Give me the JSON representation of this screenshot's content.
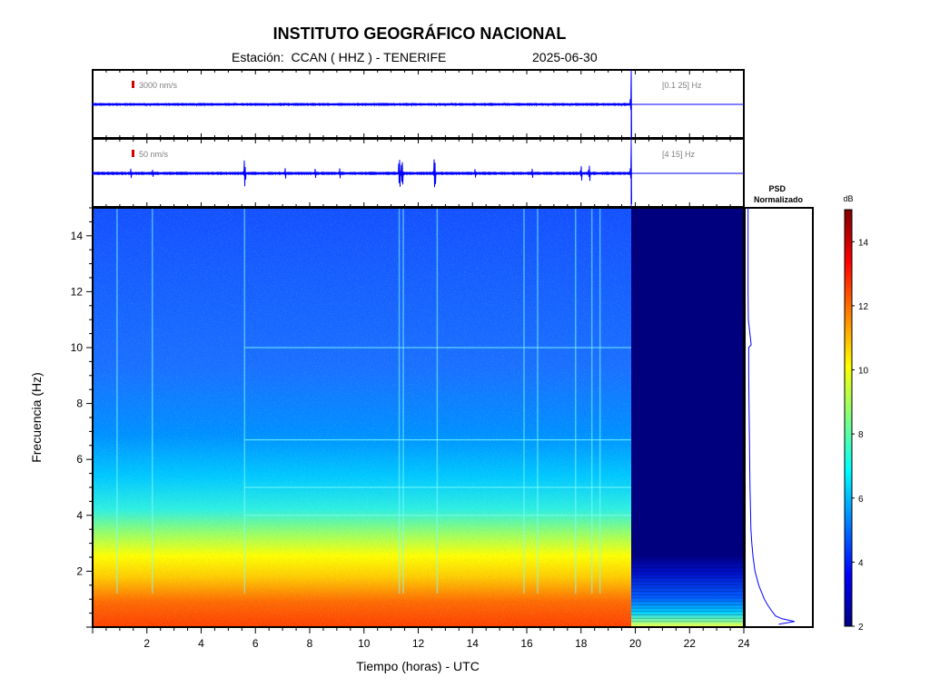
{
  "header": {
    "title": "INSTITUTO GEOGRÁFICO NACIONAL",
    "station_label": "Estación:",
    "station_value": "CCAN ( HHZ ) - TENERIFE",
    "date": "2025-06-30"
  },
  "colors": {
    "trace": "#0000ff",
    "scale_marker": "#d40000",
    "no_data": "#00007f"
  },
  "chart_data": [
    {
      "type": "line",
      "name": "seismogram-broadband",
      "amplitude_scale": "3000 nm/s",
      "filter_band": "[0.1 25] Hz",
      "x_range": [
        0,
        24
      ],
      "data_end_hour": 19.85,
      "noise_level": 0.04,
      "events": [
        {
          "hour": 19.85,
          "amplitude": 1.0
        }
      ]
    },
    {
      "type": "line",
      "name": "seismogram-filtered",
      "amplitude_scale": "50 nm/s",
      "filter_band": "[4 15] Hz",
      "x_range": [
        0,
        24
      ],
      "data_end_hour": 19.85,
      "noise_level": 0.05,
      "events": [
        {
          "hour": 1.4,
          "amplitude": 0.2
        },
        {
          "hour": 2.2,
          "amplitude": 0.18
        },
        {
          "hour": 5.6,
          "amplitude": 0.7
        },
        {
          "hour": 7.1,
          "amplitude": 0.2
        },
        {
          "hour": 8.2,
          "amplitude": 0.15
        },
        {
          "hour": 9.1,
          "amplitude": 0.2
        },
        {
          "hour": 11.3,
          "amplitude": 0.9
        },
        {
          "hour": 11.4,
          "amplitude": 0.75
        },
        {
          "hour": 12.6,
          "amplitude": 0.95
        },
        {
          "hour": 14.1,
          "amplitude": 0.2
        },
        {
          "hour": 16.2,
          "amplitude": 0.15
        },
        {
          "hour": 18.0,
          "amplitude": 0.35
        },
        {
          "hour": 18.3,
          "amplitude": 0.4
        },
        {
          "hour": 19.85,
          "amplitude": 1.0
        }
      ]
    },
    {
      "type": "heatmap",
      "name": "spectrogram",
      "xlabel": "Tiempo (horas) - UTC",
      "ylabel": "Frecuencia  (Hz)",
      "xlim": [
        0,
        24
      ],
      "ylim": [
        0,
        15
      ],
      "x_ticks": [
        2,
        4,
        6,
        8,
        10,
        12,
        14,
        16,
        18,
        20,
        22,
        24
      ],
      "y_ticks": [
        2,
        4,
        6,
        8,
        10,
        12,
        14
      ],
      "data_end_hour": 19.85,
      "vertical_lines_hours": [
        0.9,
        2.2,
        5.6,
        11.3,
        11.45,
        12.7,
        15.9,
        16.4,
        17.8,
        18.4,
        18.7
      ],
      "horizontal_lines_hz": [
        10.0,
        6.7,
        5.0,
        4.0
      ]
    },
    {
      "type": "line",
      "name": "psd-normalized",
      "title": "PSD\nNormalizado",
      "ylim": [
        0,
        15
      ],
      "freq_hz": [
        0.1,
        0.2,
        0.3,
        0.4,
        0.6,
        0.8,
        1.0,
        1.5,
        2.0,
        2.5,
        3.0,
        3.5,
        4.0,
        5.0,
        6.0,
        7.0,
        8.0,
        9.0,
        10.0,
        10.1,
        11.0,
        12.0,
        13.0,
        14.0,
        15.0
      ],
      "power": [
        0.5,
        0.75,
        0.55,
        0.45,
        0.38,
        0.32,
        0.27,
        0.18,
        0.12,
        0.09,
        0.07,
        0.055,
        0.05,
        0.04,
        0.035,
        0.03,
        0.025,
        0.02,
        0.02,
        0.06,
        0.015,
        0.01,
        0.01,
        0.01,
        0.01
      ]
    },
    {
      "type": "heatmap",
      "name": "colorbar",
      "title": "dB",
      "range": [
        2,
        15
      ],
      "ticks": [
        2,
        4,
        6,
        8,
        10,
        12,
        14
      ],
      "colormap": [
        "#00007f",
        "#0000ff",
        "#0080ff",
        "#00ffff",
        "#80ff80",
        "#ffff00",
        "#ff8000",
        "#ff0000",
        "#7f0000"
      ]
    }
  ]
}
